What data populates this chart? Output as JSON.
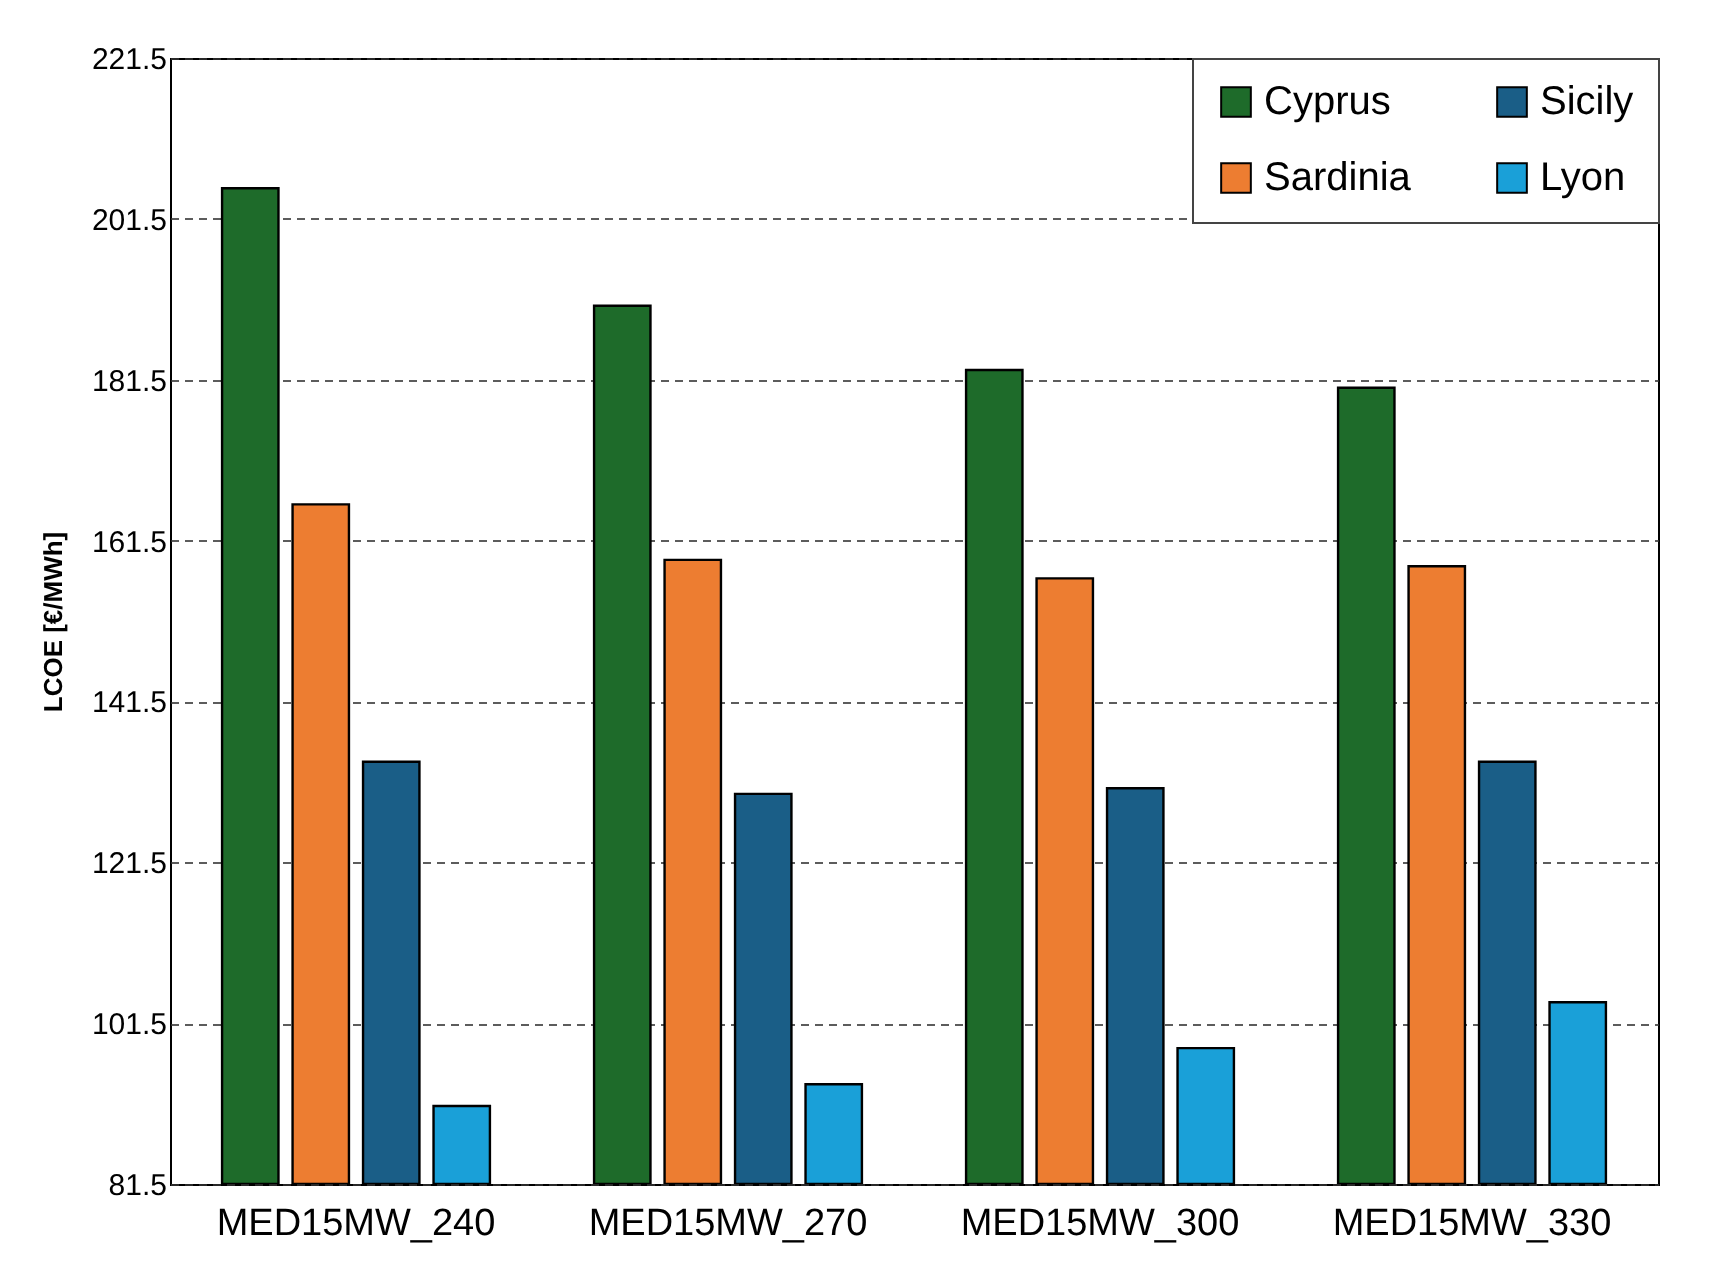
{
  "chart_data": {
    "type": "bar",
    "ylabel": "LCOE [€/MWh]",
    "categories": [
      "MED15MW_240",
      "MED15MW_270",
      "MED15MW_300",
      "MED15MW_330"
    ],
    "series": [
      {
        "name": "Cyprus",
        "color": "#1e6b2a",
        "values": [
          205.3,
          190.7,
          182.7,
          180.5
        ]
      },
      {
        "name": "Sardinia",
        "color": "#ed7d31",
        "values": [
          166.0,
          159.1,
          156.8,
          158.3
        ]
      },
      {
        "name": "Sicily",
        "color": "#1a5e87",
        "values": [
          134.0,
          130.0,
          130.7,
          134.0
        ]
      },
      {
        "name": "Lyon",
        "color": "#1aa0d8",
        "values": [
          91.2,
          93.9,
          98.4,
          104.1
        ]
      }
    ],
    "ylim": [
      81.5,
      221.5
    ],
    "yticks": [
      81.5,
      101.5,
      121.5,
      141.5,
      161.5,
      181.5,
      201.5,
      221.5
    ],
    "grid": "y",
    "legend": "top right"
  }
}
